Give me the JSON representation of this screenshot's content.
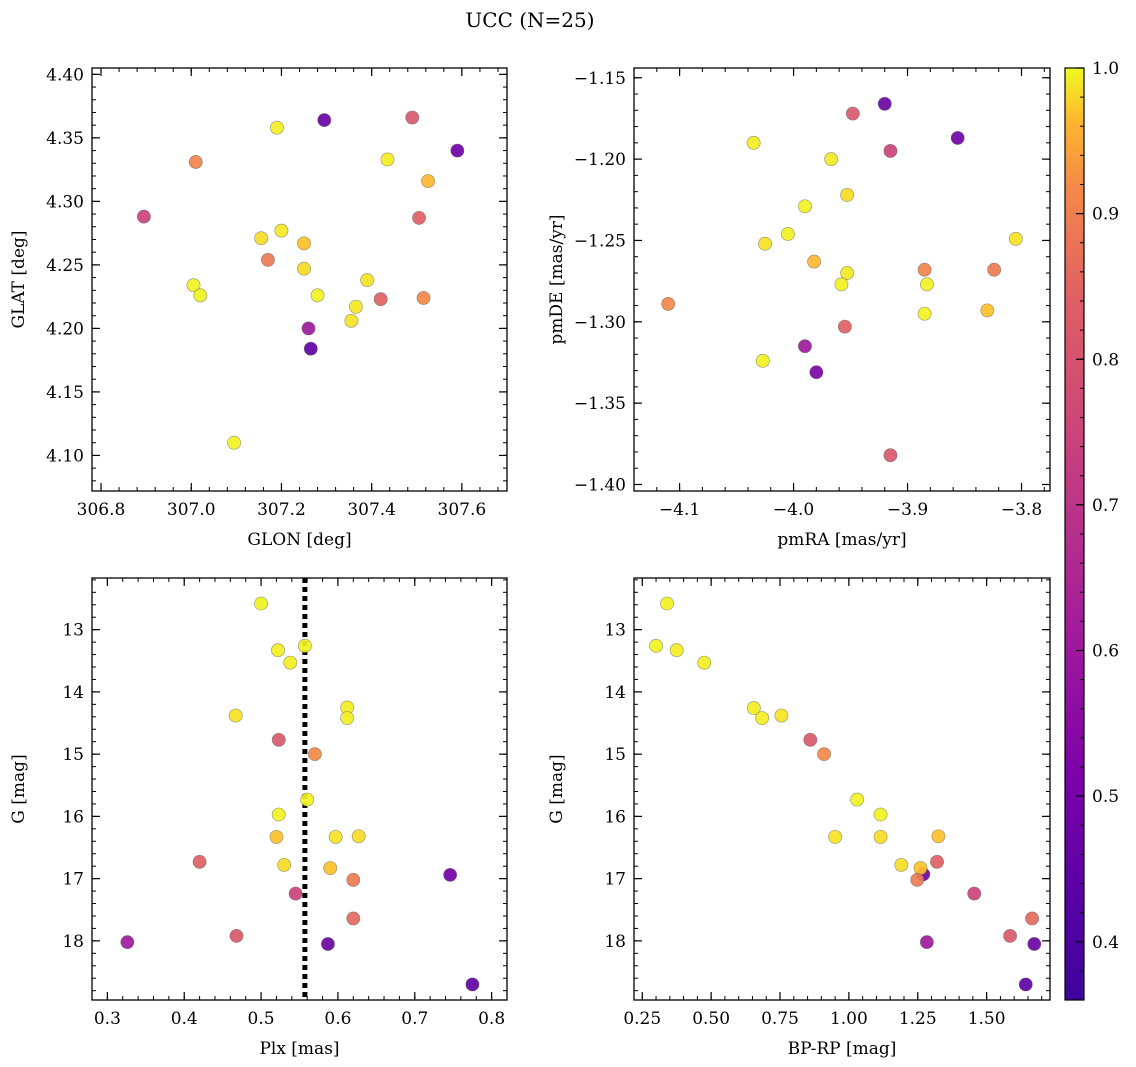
{
  "figure": {
    "suptitle": "UCC (N=25)"
  },
  "colorbar": {
    "colormap": "plasma",
    "range": [
      0.36,
      1.0
    ],
    "ticks": [
      "0.4",
      "0.5",
      "0.6",
      "0.7",
      "0.8",
      "0.9",
      "1.0"
    ],
    "tick_values": [
      0.4,
      0.5,
      0.6,
      0.7,
      0.8,
      0.9,
      1.0
    ]
  },
  "chart_data": [
    {
      "type": "scatter",
      "xlabel": "GLON [deg]",
      "ylabel": "GLAT [deg]",
      "xlim": [
        306.78,
        307.7
      ],
      "ylim": [
        4.072,
        4.405
      ],
      "xticks": [
        "306.8",
        "307.0",
        "307.2",
        "307.4",
        "307.6"
      ],
      "xtick_values": [
        306.8,
        307.0,
        307.2,
        307.4,
        307.6
      ],
      "yticks": [
        "4.10",
        "4.15",
        "4.20",
        "4.25",
        "4.30",
        "4.35",
        "4.40"
      ],
      "ytick_values": [
        4.1,
        4.15,
        4.2,
        4.25,
        4.3,
        4.35,
        4.4
      ],
      "points": [
        {
          "x": 307.19,
          "y": 4.358,
          "c": 0.98
        },
        {
          "x": 307.295,
          "y": 4.364,
          "c": 0.42
        },
        {
          "x": 307.49,
          "y": 4.366,
          "c": 0.68
        },
        {
          "x": 307.59,
          "y": 4.34,
          "c": 0.43
        },
        {
          "x": 307.01,
          "y": 4.331,
          "c": 0.78
        },
        {
          "x": 307.435,
          "y": 4.333,
          "c": 0.98
        },
        {
          "x": 307.525,
          "y": 4.316,
          "c": 0.88
        },
        {
          "x": 306.895,
          "y": 4.288,
          "c": 0.63
        },
        {
          "x": 307.505,
          "y": 4.287,
          "c": 0.7
        },
        {
          "x": 307.2,
          "y": 4.277,
          "c": 0.97
        },
        {
          "x": 307.155,
          "y": 4.271,
          "c": 0.95
        },
        {
          "x": 307.25,
          "y": 4.267,
          "c": 0.9
        },
        {
          "x": 307.17,
          "y": 4.254,
          "c": 0.76
        },
        {
          "x": 307.25,
          "y": 4.247,
          "c": 0.95
        },
        {
          "x": 307.39,
          "y": 4.238,
          "c": 0.96
        },
        {
          "x": 307.005,
          "y": 4.234,
          "c": 0.99
        },
        {
          "x": 307.02,
          "y": 4.226,
          "c": 0.99
        },
        {
          "x": 307.28,
          "y": 4.226,
          "c": 0.99
        },
        {
          "x": 307.42,
          "y": 4.223,
          "c": 0.7
        },
        {
          "x": 307.515,
          "y": 4.224,
          "c": 0.79
        },
        {
          "x": 307.365,
          "y": 4.217,
          "c": 0.97
        },
        {
          "x": 307.355,
          "y": 4.206,
          "c": 0.96
        },
        {
          "x": 307.26,
          "y": 4.2,
          "c": 0.52
        },
        {
          "x": 307.265,
          "y": 4.184,
          "c": 0.4
        },
        {
          "x": 307.095,
          "y": 4.11,
          "c": 0.99
        }
      ]
    },
    {
      "type": "scatter",
      "xlabel": "pmRA [mas/yr]",
      "ylabel": "pmDE [mas/yr]",
      "xlim": [
        -4.14,
        -3.775
      ],
      "ylim": [
        -1.404,
        -1.144
      ],
      "xticks": [
        "−4.1",
        "−4.0",
        "−3.9",
        "−3.8"
      ],
      "xtick_values": [
        -4.1,
        -4.0,
        -3.9,
        -3.8
      ],
      "yticks": [
        "−1.40",
        "−1.35",
        "−1.30",
        "−1.25",
        "−1.20",
        "−1.15"
      ],
      "ytick_values": [
        -1.4,
        -1.35,
        -1.3,
        -1.25,
        -1.2,
        -1.15
      ],
      "points": [
        {
          "x": -3.92,
          "y": -1.166,
          "c": 0.42
        },
        {
          "x": -3.948,
          "y": -1.172,
          "c": 0.68
        },
        {
          "x": -3.856,
          "y": -1.187,
          "c": 0.43
        },
        {
          "x": -4.035,
          "y": -1.19,
          "c": 0.98
        },
        {
          "x": -3.915,
          "y": -1.195,
          "c": 0.63
        },
        {
          "x": -3.967,
          "y": -1.2,
          "c": 0.97
        },
        {
          "x": -3.953,
          "y": -1.222,
          "c": 0.95
        },
        {
          "x": -3.99,
          "y": -1.229,
          "c": 0.99
        },
        {
          "x": -4.005,
          "y": -1.246,
          "c": 0.99
        },
        {
          "x": -3.805,
          "y": -1.249,
          "c": 0.96
        },
        {
          "x": -4.025,
          "y": -1.252,
          "c": 0.96
        },
        {
          "x": -3.982,
          "y": -1.263,
          "c": 0.88
        },
        {
          "x": -3.885,
          "y": -1.268,
          "c": 0.78
        },
        {
          "x": -3.824,
          "y": -1.268,
          "c": 0.76
        },
        {
          "x": -3.953,
          "y": -1.27,
          "c": 0.97
        },
        {
          "x": -3.958,
          "y": -1.277,
          "c": 0.99
        },
        {
          "x": -3.883,
          "y": -1.277,
          "c": 0.99
        },
        {
          "x": -4.11,
          "y": -1.289,
          "c": 0.79
        },
        {
          "x": -3.83,
          "y": -1.293,
          "c": 0.9
        },
        {
          "x": -3.885,
          "y": -1.295,
          "c": 0.99
        },
        {
          "x": -3.955,
          "y": -1.303,
          "c": 0.7
        },
        {
          "x": -3.99,
          "y": -1.315,
          "c": 0.52
        },
        {
          "x": -4.027,
          "y": -1.324,
          "c": 0.99
        },
        {
          "x": -3.98,
          "y": -1.331,
          "c": 0.45
        },
        {
          "x": -3.915,
          "y": -1.382,
          "c": 0.68
        }
      ]
    },
    {
      "type": "scatter",
      "xlabel": "Plx [mas]",
      "ylabel": "G [mag]",
      "xlim": [
        0.28,
        0.82
      ],
      "ylim": [
        18.95,
        12.17
      ],
      "y_inverted": true,
      "xticks": [
        "0.3",
        "0.4",
        "0.5",
        "0.6",
        "0.7",
        "0.8"
      ],
      "xtick_values": [
        0.3,
        0.4,
        0.5,
        0.6,
        0.7,
        0.8
      ],
      "yticks": [
        "13",
        "14",
        "15",
        "16",
        "17",
        "18"
      ],
      "ytick_values": [
        13,
        14,
        15,
        16,
        17,
        18
      ],
      "vline": {
        "x": 0.557,
        "style": "dotted"
      },
      "points": [
        {
          "x": 0.5,
          "y": 12.58,
          "c": 0.99
        },
        {
          "x": 0.557,
          "y": 13.26,
          "c": 0.99
        },
        {
          "x": 0.522,
          "y": 13.33,
          "c": 0.98
        },
        {
          "x": 0.538,
          "y": 13.53,
          "c": 0.98
        },
        {
          "x": 0.612,
          "y": 14.25,
          "c": 0.98
        },
        {
          "x": 0.612,
          "y": 14.42,
          "c": 0.98
        },
        {
          "x": 0.467,
          "y": 14.38,
          "c": 0.96
        },
        {
          "x": 0.523,
          "y": 14.77,
          "c": 0.68
        },
        {
          "x": 0.57,
          "y": 15.0,
          "c": 0.79
        },
        {
          "x": 0.56,
          "y": 15.73,
          "c": 0.99
        },
        {
          "x": 0.523,
          "y": 15.97,
          "c": 0.99
        },
        {
          "x": 0.52,
          "y": 16.33,
          "c": 0.9
        },
        {
          "x": 0.597,
          "y": 16.33,
          "c": 0.96
        },
        {
          "x": 0.627,
          "y": 16.32,
          "c": 0.95
        },
        {
          "x": 0.42,
          "y": 16.73,
          "c": 0.7
        },
        {
          "x": 0.53,
          "y": 16.78,
          "c": 0.95
        },
        {
          "x": 0.59,
          "y": 16.83,
          "c": 0.9
        },
        {
          "x": 0.62,
          "y": 17.02,
          "c": 0.76
        },
        {
          "x": 0.545,
          "y": 17.24,
          "c": 0.63
        },
        {
          "x": 0.746,
          "y": 16.94,
          "c": 0.43
        },
        {
          "x": 0.62,
          "y": 17.64,
          "c": 0.72
        },
        {
          "x": 0.468,
          "y": 17.92,
          "c": 0.68
        },
        {
          "x": 0.326,
          "y": 18.02,
          "c": 0.52
        },
        {
          "x": 0.587,
          "y": 18.05,
          "c": 0.42
        },
        {
          "x": 0.775,
          "y": 18.7,
          "c": 0.4
        }
      ]
    },
    {
      "type": "scatter",
      "xlabel": "BP-RP [mag]",
      "ylabel": "G [mag]",
      "xlim": [
        0.22,
        1.73
      ],
      "ylim": [
        18.95,
        12.17
      ],
      "y_inverted": true,
      "xticks": [
        "0.25",
        "0.50",
        "0.75",
        "1.00",
        "1.25",
        "1.50"
      ],
      "xtick_values": [
        0.25,
        0.5,
        0.75,
        1.0,
        1.25,
        1.5
      ],
      "yticks": [
        "13",
        "14",
        "15",
        "16",
        "17",
        "18"
      ],
      "ytick_values": [
        13,
        14,
        15,
        16,
        17,
        18
      ],
      "points": [
        {
          "x": 0.34,
          "y": 12.58,
          "c": 0.99
        },
        {
          "x": 0.3,
          "y": 13.26,
          "c": 0.99
        },
        {
          "x": 0.375,
          "y": 13.33,
          "c": 0.98
        },
        {
          "x": 0.475,
          "y": 13.53,
          "c": 0.98
        },
        {
          "x": 0.655,
          "y": 14.26,
          "c": 0.98
        },
        {
          "x": 0.685,
          "y": 14.42,
          "c": 0.98
        },
        {
          "x": 0.755,
          "y": 14.38,
          "c": 0.96
        },
        {
          "x": 0.86,
          "y": 14.77,
          "c": 0.68
        },
        {
          "x": 0.91,
          "y": 15.0,
          "c": 0.79
        },
        {
          "x": 1.03,
          "y": 15.73,
          "c": 0.99
        },
        {
          "x": 1.115,
          "y": 15.97,
          "c": 0.99
        },
        {
          "x": 0.95,
          "y": 16.33,
          "c": 0.96
        },
        {
          "x": 1.115,
          "y": 16.33,
          "c": 0.95
        },
        {
          "x": 1.325,
          "y": 16.32,
          "c": 0.9
        },
        {
          "x": 1.32,
          "y": 16.73,
          "c": 0.7
        },
        {
          "x": 1.19,
          "y": 16.78,
          "c": 0.95
        },
        {
          "x": 1.27,
          "y": 16.93,
          "c": 0.43
        },
        {
          "x": 1.26,
          "y": 16.83,
          "c": 0.9
        },
        {
          "x": 1.248,
          "y": 17.02,
          "c": 0.76
        },
        {
          "x": 1.455,
          "y": 17.24,
          "c": 0.63
        },
        {
          "x": 1.665,
          "y": 17.64,
          "c": 0.72
        },
        {
          "x": 1.585,
          "y": 17.92,
          "c": 0.68
        },
        {
          "x": 1.283,
          "y": 18.02,
          "c": 0.52
        },
        {
          "x": 1.673,
          "y": 18.05,
          "c": 0.42
        },
        {
          "x": 1.642,
          "y": 18.7,
          "c": 0.4
        }
      ]
    }
  ]
}
